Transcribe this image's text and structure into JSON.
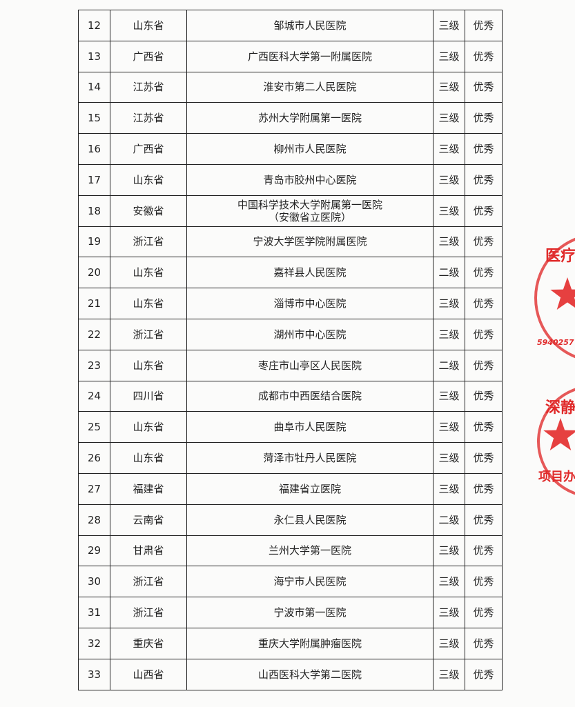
{
  "table": {
    "rows": [
      {
        "no": "12",
        "province": "山东省",
        "hospital": "邹城市人民医院",
        "level": "三级",
        "rating": "优秀"
      },
      {
        "no": "13",
        "province": "广西省",
        "hospital": "广西医科大学第一附属医院",
        "level": "三级",
        "rating": "优秀"
      },
      {
        "no": "14",
        "province": "江苏省",
        "hospital": "淮安市第二人民医院",
        "level": "三级",
        "rating": "优秀"
      },
      {
        "no": "15",
        "province": "江苏省",
        "hospital": "苏州大学附属第一医院",
        "level": "三级",
        "rating": "优秀"
      },
      {
        "no": "16",
        "province": "广西省",
        "hospital": "柳州市人民医院",
        "level": "三级",
        "rating": "优秀"
      },
      {
        "no": "17",
        "province": "山东省",
        "hospital": "青岛市胶州中心医院",
        "level": "三级",
        "rating": "优秀"
      },
      {
        "no": "18",
        "province": "安徽省",
        "hospital": "中国科学技术大学附属第一医院",
        "hospital_note": "（安徽省立医院）",
        "level": "三级",
        "rating": "优秀"
      },
      {
        "no": "19",
        "province": "浙江省",
        "hospital": "宁波大学医学院附属医院",
        "level": "三级",
        "rating": "优秀"
      },
      {
        "no": "20",
        "province": "山东省",
        "hospital": "嘉祥县人民医院",
        "level": "二级",
        "rating": "优秀"
      },
      {
        "no": "21",
        "province": "山东省",
        "hospital": "淄博市中心医院",
        "level": "三级",
        "rating": "优秀"
      },
      {
        "no": "22",
        "province": "浙江省",
        "hospital": "湖州市中心医院",
        "level": "三级",
        "rating": "优秀"
      },
      {
        "no": "23",
        "province": "山东省",
        "hospital": "枣庄市山亭区人民医院",
        "level": "二级",
        "rating": "优秀"
      },
      {
        "no": "24",
        "province": "四川省",
        "hospital": "成都市中西医结合医院",
        "level": "三级",
        "rating": "优秀"
      },
      {
        "no": "25",
        "province": "山东省",
        "hospital": "曲阜市人民医院",
        "level": "三级",
        "rating": "优秀"
      },
      {
        "no": "26",
        "province": "山东省",
        "hospital": "菏泽市牡丹人民医院",
        "level": "三级",
        "rating": "优秀"
      },
      {
        "no": "27",
        "province": "福建省",
        "hospital": "福建省立医院",
        "level": "三级",
        "rating": "优秀"
      },
      {
        "no": "28",
        "province": "云南省",
        "hospital": "永仁县人民医院",
        "level": "二级",
        "rating": "优秀"
      },
      {
        "no": "29",
        "province": "甘肃省",
        "hospital": "兰州大学第一医院",
        "level": "三级",
        "rating": "优秀"
      },
      {
        "no": "30",
        "province": "浙江省",
        "hospital": "海宁市人民医院",
        "level": "三级",
        "rating": "优秀"
      },
      {
        "no": "31",
        "province": "浙江省",
        "hospital": "宁波市第一医院",
        "level": "三级",
        "rating": "优秀"
      },
      {
        "no": "32",
        "province": "重庆省",
        "hospital": "重庆大学附属肿瘤医院",
        "level": "三级",
        "rating": "优秀"
      },
      {
        "no": "33",
        "province": "山西省",
        "hospital": "山西医科大学第二医院",
        "level": "三级",
        "rating": "优秀"
      }
    ]
  },
  "stamps": [
    {
      "top_text": "医疗",
      "bottom_text": "5940257"
    },
    {
      "top_text": "深静",
      "bottom_text": "项目办"
    }
  ]
}
